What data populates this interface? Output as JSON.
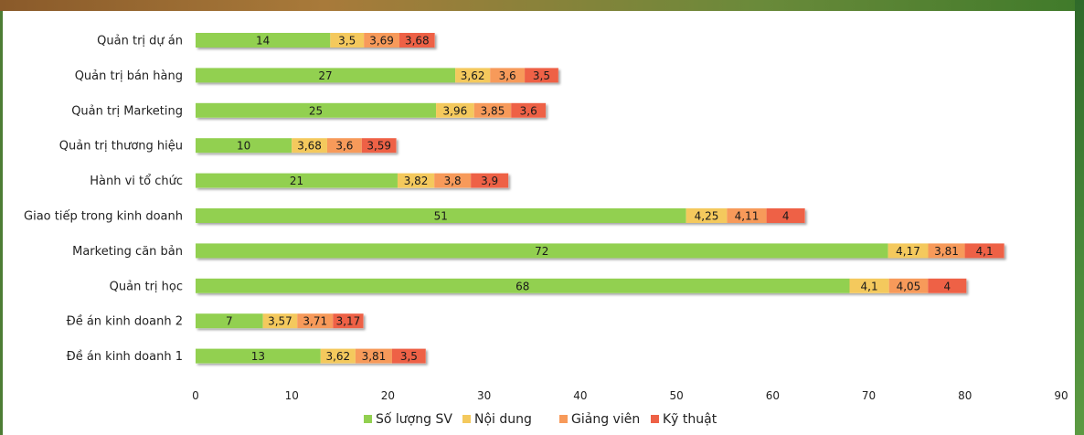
{
  "chart_data": {
    "type": "bar",
    "orientation": "horizontal",
    "stacked": true,
    "categories": [
      "Quản trị dự án",
      "Quản trị bán hàng",
      "Quản trị Marketing",
      "Quản trị thương hiệu",
      "Hành vi tổ chức",
      "Giao tiếp trong kinh doanh",
      "Marketing căn bản",
      "Quản trị học",
      "Đề án kinh doanh 2",
      "Đề án kinh doanh 1"
    ],
    "series": [
      {
        "name": "Số lượng SV",
        "color": "#92d050",
        "values": [
          14,
          27,
          25,
          10,
          21,
          51,
          72,
          68,
          7,
          13
        ],
        "labels": [
          "14",
          "27",
          "25",
          "10",
          "21",
          "51",
          "72",
          "68",
          "7",
          "13"
        ]
      },
      {
        "name": "Nội dung",
        "color": "#f4c95d",
        "values": [
          3.5,
          3.62,
          3.96,
          3.68,
          3.82,
          4.25,
          4.17,
          4.1,
          3.57,
          3.62
        ],
        "labels": [
          "3,5",
          "3,62",
          "3,96",
          "3,68",
          "3,82",
          "4,25",
          "4,17",
          "4,1",
          "3,57",
          "3,62"
        ]
      },
      {
        "name": "Giảng viên",
        "color": "#f79a5a",
        "values": [
          3.69,
          3.6,
          3.85,
          3.6,
          3.8,
          4.11,
          3.81,
          4.05,
          3.71,
          3.81
        ],
        "labels": [
          "3,69",
          "3,6",
          "3,85",
          "3,6",
          "3,8",
          "4,11",
          "3,81",
          "4,05",
          "3,71",
          "3,81"
        ]
      },
      {
        "name": "Kỹ thuật",
        "color": "#ee6146",
        "values": [
          3.68,
          3.5,
          3.6,
          3.59,
          3.9,
          4,
          4.1,
          4,
          3.17,
          3.5
        ],
        "labels": [
          "3,68",
          "3,5",
          "3,6",
          "3,59",
          "3,9",
          "4",
          "4,1",
          "4",
          "3,17",
          "3,5"
        ]
      }
    ],
    "xlim": [
      0,
      90
    ],
    "xticks": [
      0,
      10,
      20,
      30,
      40,
      50,
      60,
      70,
      80,
      90
    ],
    "grid": false,
    "legend_position": "bottom"
  }
}
